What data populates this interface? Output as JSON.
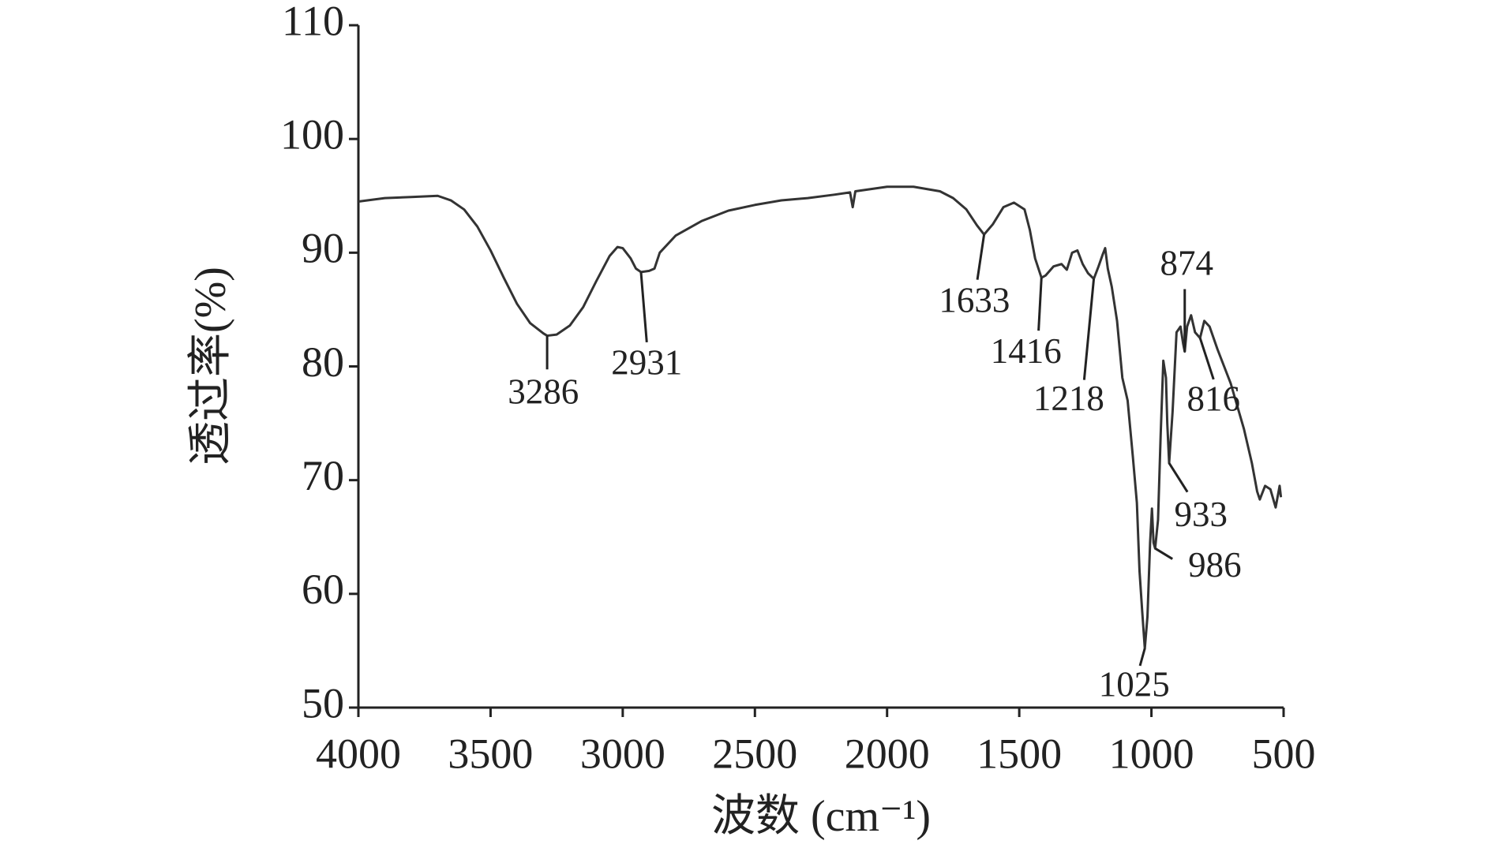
{
  "chart_data": {
    "type": "line",
    "x_label": "波数 (cm⁻¹)",
    "y_label": "透过率(%)",
    "xlim": [
      4000,
      500
    ],
    "xticks": [
      4000,
      3500,
      3000,
      2500,
      2000,
      1500,
      1000,
      500
    ],
    "ylim": [
      50,
      110
    ],
    "yticks": [
      50,
      60,
      70,
      80,
      90,
      100,
      110
    ],
    "grid": false,
    "series": [
      {
        "color": "#333333",
        "x": [
          4000,
          3900,
          3800,
          3700,
          3650,
          3600,
          3550,
          3500,
          3450,
          3400,
          3350,
          3300,
          3286,
          3250,
          3200,
          3150,
          3100,
          3050,
          3020,
          3000,
          2970,
          2950,
          2931,
          2900,
          2880,
          2860,
          2800,
          2700,
          2600,
          2500,
          2400,
          2300,
          2200,
          2140,
          2130,
          2120,
          2000,
          1900,
          1800,
          1750,
          1700,
          1660,
          1633,
          1600,
          1560,
          1520,
          1480,
          1460,
          1440,
          1416,
          1400,
          1370,
          1340,
          1320,
          1300,
          1280,
          1260,
          1240,
          1218,
          1200,
          1185,
          1175,
          1165,
          1150,
          1130,
          1110,
          1090,
          1070,
          1055,
          1045,
          1035,
          1025,
          1015,
          1005,
          998,
          992,
          986,
          975,
          965,
          955,
          945,
          940,
          933,
          920,
          905,
          890,
          880,
          874,
          865,
          850,
          835,
          816,
          800,
          780,
          750,
          700,
          650,
          620,
          600,
          590,
          570,
          550,
          530,
          515,
          510
        ],
        "values": [
          94.5,
          94.8,
          94.9,
          95.0,
          94.6,
          93.8,
          92.3,
          90.2,
          87.8,
          85.5,
          83.8,
          82.9,
          82.7,
          82.8,
          83.6,
          85.2,
          87.5,
          89.7,
          90.5,
          90.4,
          89.5,
          88.6,
          88.3,
          88.4,
          88.6,
          90.0,
          91.5,
          92.8,
          93.7,
          94.2,
          94.6,
          94.8,
          95.1,
          95.3,
          94.0,
          95.4,
          95.8,
          95.8,
          95.4,
          94.8,
          93.8,
          92.4,
          91.6,
          92.5,
          94.0,
          94.4,
          93.8,
          92.0,
          89.5,
          87.8,
          88.0,
          88.8,
          89.0,
          88.5,
          90.0,
          90.2,
          89.0,
          88.2,
          87.7,
          88.8,
          89.8,
          90.4,
          88.6,
          87.0,
          84.0,
          79.0,
          77.0,
          72.0,
          68.0,
          62.0,
          58.5,
          55.2,
          58.0,
          64.5,
          67.5,
          64.5,
          64.0,
          66.5,
          74.0,
          80.5,
          79.0,
          75.0,
          71.5,
          76.0,
          83.0,
          83.5,
          82.0,
          81.3,
          83.5,
          84.5,
          83.0,
          82.5,
          84.0,
          83.5,
          81.5,
          78.5,
          74.5,
          71.5,
          69.0,
          68.3,
          69.5,
          69.2,
          67.6,
          69.5,
          68.5
        ]
      }
    ],
    "annotations": [
      {
        "text": "3286",
        "x": 3286,
        "y": 82.7
      },
      {
        "text": "2931",
        "x": 2931,
        "y": 88.3
      },
      {
        "text": "1633",
        "x": 1633,
        "y": 91.6
      },
      {
        "text": "1416",
        "x": 1416,
        "y": 87.8
      },
      {
        "text": "1218",
        "x": 1218,
        "y": 87.7
      },
      {
        "text": "1025",
        "x": 1025,
        "y": 55.2
      },
      {
        "text": "986",
        "x": 986,
        "y": 64.0
      },
      {
        "text": "933",
        "x": 933,
        "y": 71.5
      },
      {
        "text": "874",
        "x": 874,
        "y": 81.3
      },
      {
        "text": "816",
        "x": 816,
        "y": 82.5
      }
    ]
  }
}
